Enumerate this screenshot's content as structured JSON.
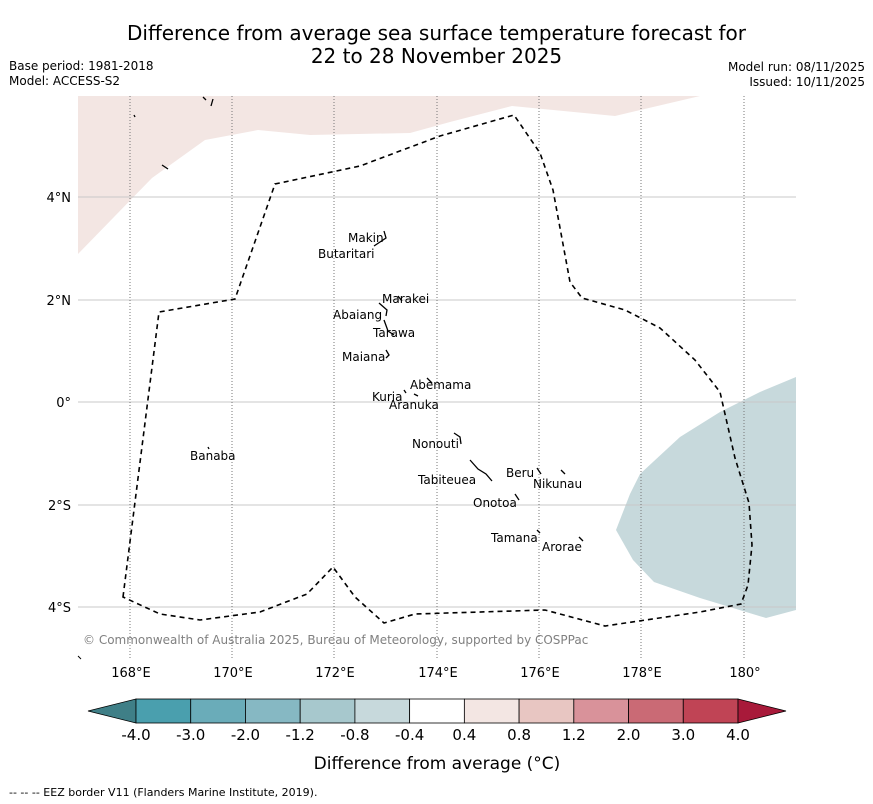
{
  "title": {
    "line1": "Difference from average sea surface temperature forecast for",
    "line2": "22 to 28 November 2025"
  },
  "info": {
    "base_period": "Base period: 1981-2018",
    "model": "Model: ACCESS-S2",
    "model_run": "Model run: 08/11/2025",
    "issued": "Issued: 10/11/2025"
  },
  "map": {
    "lat_labels": [
      "4°N",
      "2°N",
      "0°",
      "2°S",
      "4°S"
    ],
    "lon_labels": [
      "168°E",
      "170°E",
      "172°E",
      "174°E",
      "176°E",
      "178°E",
      "180°"
    ],
    "copyright": "© Commonwealth of Australia 2025, Bureau of Meteorology, supported by COSPPac",
    "islands": [
      "Makin",
      "Butaritari",
      "Marakei",
      "Abaiang",
      "Tarawa",
      "Maiana",
      "Abemama",
      "Kuria",
      "Aranuka",
      "Nonouti",
      "Banaba",
      "Beru",
      "Nikunau",
      "Tabiteuea",
      "Onotoa",
      "Tamana",
      "Arorae"
    ]
  },
  "colorbar": {
    "ticks": [
      "-4.0",
      "-3.0",
      "-2.0",
      "-1.2",
      "-0.8",
      "-0.4",
      "0.4",
      "0.8",
      "1.2",
      "2.0",
      "3.0",
      "4.0"
    ],
    "colors": [
      "#4a9fae",
      "#6aacb9",
      "#86b8c3",
      "#a7c8cd",
      "#c7d9dc",
      "#ffffff",
      "#f3e6e3",
      "#e8c6c2",
      "#d9929a",
      "#ca6a75",
      "#c04455"
    ],
    "under_color": "#3f7f87",
    "over_color": "#a81a3a",
    "label": "Difference from average (°C)"
  },
  "footnote": "--  --  -- EEZ border V11 (Flanders Marine Institute, 2019)."
}
